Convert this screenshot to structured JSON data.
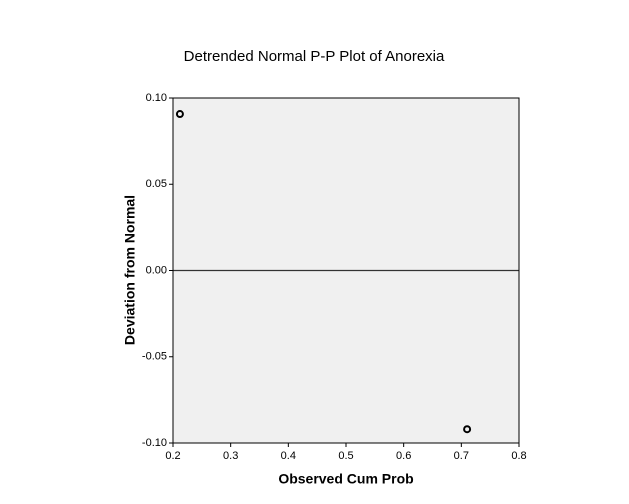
{
  "chart_data": {
    "type": "scatter",
    "title": "Detrended Normal P-P Plot of Anorexia",
    "x_label": "Observed Cum Prob",
    "y_label": "Deviation from Normal",
    "series": [
      {
        "name": "Anorexia",
        "color": "#000000",
        "x": [
          0.212,
          0.71
        ],
        "values": [
          0.0907,
          -0.092
        ]
      }
    ],
    "reference_line": 0,
    "xlim": [
      0.2,
      0.8
    ],
    "xticks": [
      0.2,
      0.3,
      0.4,
      0.5,
      0.6,
      0.7,
      0.8
    ],
    "ylim": [
      -0.1,
      0.1
    ],
    "yticks": [
      {
        "value": -0.1,
        "label": "-0.10"
      },
      {
        "value": -0.05,
        "label": "-0.05"
      },
      {
        "value": 0,
        "label": "0.00"
      },
      {
        "value": 0.05,
        "label": "0.05"
      },
      {
        "value": 0.1,
        "label": "0.10"
      }
    ],
    "plot_background": "#f0f0f0"
  }
}
